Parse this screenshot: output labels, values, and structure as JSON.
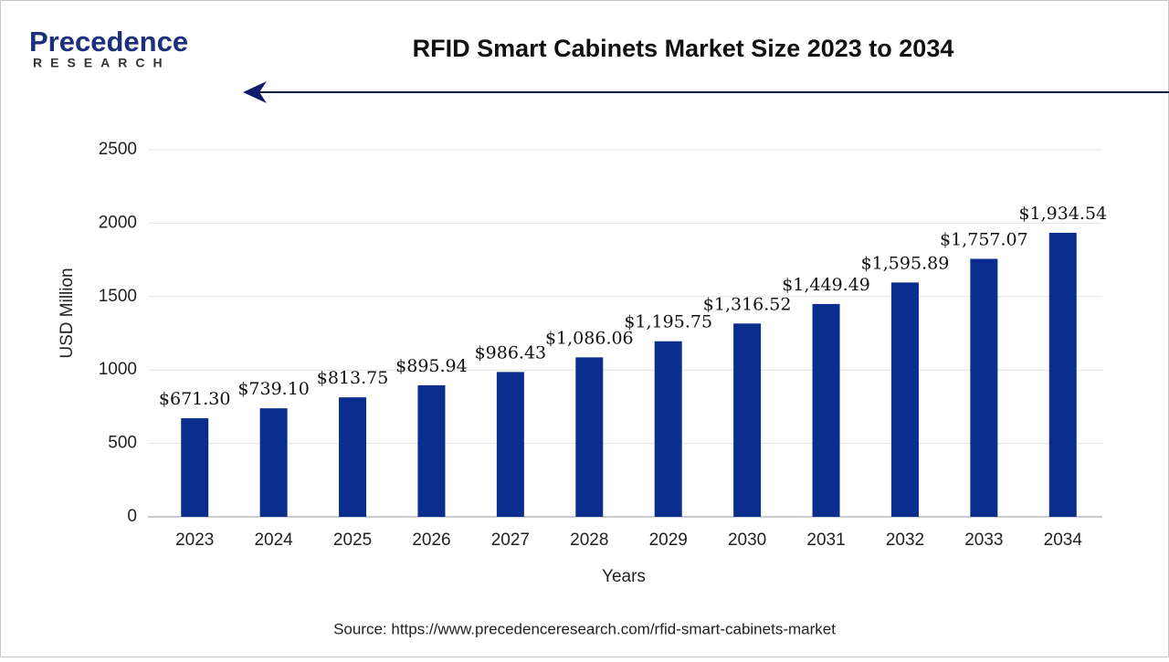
{
  "header": {
    "brand": "Precedence",
    "tagline": "RESEARCH"
  },
  "chart_data": {
    "type": "bar",
    "title": "RFID Smart Cabinets Market Size 2023 to 2034",
    "categories": [
      "2023",
      "2024",
      "2025",
      "2026",
      "2027",
      "2028",
      "2029",
      "2030",
      "2031",
      "2032",
      "2033",
      "2034"
    ],
    "values": [
      671.3,
      739.1,
      813.75,
      895.94,
      986.43,
      1086.06,
      1195.75,
      1316.52,
      1449.49,
      1595.89,
      1757.07,
      1934.54
    ],
    "value_labels": [
      "$671.30",
      "$739.10",
      "$813.75",
      "$895.94",
      "$986.43",
      "$1,086.06",
      "$1,195.75",
      "$1,316.52",
      "$1,449.49",
      "$1,595.89",
      "$1,757.07",
      "$1,934.54"
    ],
    "color": "#0b2e8e",
    "ylim": [
      0,
      2500
    ],
    "yticks": [
      0,
      500,
      1000,
      1500,
      2000,
      2500
    ],
    "grid": true,
    "ylabel": "USD Million",
    "xlabel": "Years",
    "source": "Source: https://www.precedenceresearch.com/rfid-smart-cabinets-market"
  }
}
